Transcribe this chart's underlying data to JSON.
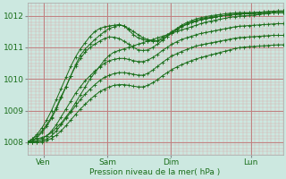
{
  "xlabel": "Pression niveau de la mer( hPa )",
  "bg_color": "#cce8e0",
  "line_color": "#1a6e1a",
  "ylim": [
    1007.6,
    1012.4
  ],
  "xlim": [
    0,
    192
  ],
  "day_labels": [
    "Ven",
    "Sam",
    "Dim",
    "Lun"
  ],
  "day_positions": [
    12,
    60,
    108,
    168
  ],
  "yticks": [
    1008,
    1009,
    1010,
    1011,
    1012
  ],
  "series": [
    [
      1008.0,
      1008.05,
      1008.1,
      1008.15,
      1008.2,
      1008.3,
      1008.45,
      1008.6,
      1008.8,
      1009.0,
      1009.25,
      1009.5,
      1009.75,
      1010.0,
      1010.2,
      1010.4,
      1010.6,
      1010.75,
      1010.85,
      1010.9,
      1010.95,
      1011.0,
      1011.05,
      1011.1,
      1011.15,
      1011.2,
      1011.25,
      1011.3,
      1011.35,
      1011.4,
      1011.45,
      1011.5,
      1011.55,
      1011.6,
      1011.65,
      1011.7,
      1011.75,
      1011.8,
      1011.83,
      1011.86,
      1011.89,
      1011.92,
      1011.95,
      1011.97,
      1011.99,
      1012.0,
      1012.01,
      1012.02,
      1012.04,
      1012.06,
      1012.08,
      1012.09,
      1012.1,
      1012.1
    ],
    [
      1008.0,
      1008.1,
      1008.2,
      1008.35,
      1008.55,
      1008.8,
      1009.1,
      1009.45,
      1009.75,
      1010.1,
      1010.45,
      1010.75,
      1010.95,
      1011.1,
      1011.25,
      1011.38,
      1011.5,
      1011.6,
      1011.65,
      1011.7,
      1011.68,
      1011.6,
      1011.5,
      1011.4,
      1011.3,
      1011.25,
      1011.2,
      1011.2,
      1011.25,
      1011.35,
      1011.45,
      1011.55,
      1011.65,
      1011.72,
      1011.78,
      1011.83,
      1011.87,
      1011.9,
      1011.93,
      1011.96,
      1011.99,
      1012.01,
      1012.03,
      1012.05,
      1012.07,
      1012.08,
      1012.09,
      1012.1,
      1012.11,
      1012.12,
      1012.13,
      1012.14,
      1012.15,
      1012.15
    ],
    [
      1008.0,
      1008.1,
      1008.25,
      1008.45,
      1008.7,
      1009.0,
      1009.35,
      1009.7,
      1010.05,
      1010.4,
      1010.7,
      1010.95,
      1011.15,
      1011.35,
      1011.5,
      1011.6,
      1011.65,
      1011.68,
      1011.7,
      1011.72,
      1011.68,
      1011.55,
      1011.4,
      1011.3,
      1011.25,
      1011.2,
      1011.2,
      1011.22,
      1011.3,
      1011.4,
      1011.5,
      1011.6,
      1011.7,
      1011.78,
      1011.84,
      1011.9,
      1011.94,
      1011.97,
      1012.0,
      1012.02,
      1012.04,
      1012.06,
      1012.08,
      1012.09,
      1012.1,
      1012.1,
      1012.1,
      1012.1,
      1012.11,
      1012.12,
      1012.13,
      1012.14,
      1012.15,
      1012.15
    ],
    [
      1008.0,
      1008.05,
      1008.15,
      1008.3,
      1008.5,
      1008.75,
      1009.05,
      1009.4,
      1009.75,
      1010.1,
      1010.4,
      1010.65,
      1010.85,
      1011.0,
      1011.1,
      1011.2,
      1011.28,
      1011.33,
      1011.32,
      1011.28,
      1011.2,
      1011.1,
      1011.0,
      1010.92,
      1010.9,
      1010.92,
      1011.0,
      1011.1,
      1011.22,
      1011.35,
      1011.48,
      1011.58,
      1011.67,
      1011.74,
      1011.8,
      1011.85,
      1011.89,
      1011.92,
      1011.95,
      1011.97,
      1011.99,
      1012.01,
      1012.03,
      1012.04,
      1012.05,
      1012.06,
      1012.06,
      1012.07,
      1012.07,
      1012.08,
      1012.08,
      1012.09,
      1012.1,
      1012.1
    ],
    [
      1008.0,
      1008.0,
      1008.05,
      1008.1,
      1008.2,
      1008.35,
      1008.55,
      1008.8,
      1009.05,
      1009.3,
      1009.55,
      1009.75,
      1009.95,
      1010.1,
      1010.25,
      1010.38,
      1010.5,
      1010.58,
      1010.62,
      1010.65,
      1010.65,
      1010.62,
      1010.58,
      1010.55,
      1010.55,
      1010.6,
      1010.68,
      1010.78,
      1010.9,
      1011.0,
      1011.1,
      1011.18,
      1011.25,
      1011.3,
      1011.35,
      1011.4,
      1011.44,
      1011.47,
      1011.5,
      1011.53,
      1011.56,
      1011.59,
      1011.62,
      1011.65,
      1011.67,
      1011.68,
      1011.69,
      1011.7,
      1011.71,
      1011.72,
      1011.73,
      1011.74,
      1011.75,
      1011.75
    ],
    [
      1008.0,
      1008.0,
      1008.0,
      1008.05,
      1008.1,
      1008.2,
      1008.35,
      1008.55,
      1008.75,
      1008.95,
      1009.15,
      1009.35,
      1009.52,
      1009.68,
      1009.82,
      1009.95,
      1010.05,
      1010.12,
      1010.17,
      1010.2,
      1010.2,
      1010.18,
      1010.15,
      1010.12,
      1010.12,
      1010.18,
      1010.28,
      1010.4,
      1010.52,
      1010.63,
      1010.73,
      1010.8,
      1010.87,
      1010.93,
      1010.99,
      1011.04,
      1011.08,
      1011.11,
      1011.14,
      1011.17,
      1011.2,
      1011.23,
      1011.26,
      1011.29,
      1011.31,
      1011.32,
      1011.33,
      1011.34,
      1011.35,
      1011.36,
      1011.37,
      1011.38,
      1011.38,
      1011.38
    ],
    [
      1008.0,
      1008.0,
      1008.0,
      1008.0,
      1008.05,
      1008.12,
      1008.22,
      1008.36,
      1008.52,
      1008.7,
      1008.88,
      1009.05,
      1009.2,
      1009.35,
      1009.48,
      1009.6,
      1009.68,
      1009.75,
      1009.8,
      1009.82,
      1009.82,
      1009.8,
      1009.77,
      1009.75,
      1009.75,
      1009.8,
      1009.88,
      1009.98,
      1010.1,
      1010.2,
      1010.3,
      1010.38,
      1010.45,
      1010.52,
      1010.58,
      1010.63,
      1010.68,
      1010.72,
      1010.76,
      1010.8,
      1010.84,
      1010.88,
      1010.92,
      1010.96,
      1010.99,
      1011.01,
      1011.02,
      1011.03,
      1011.04,
      1011.05,
      1011.06,
      1011.07,
      1011.08,
      1011.08
    ]
  ]
}
